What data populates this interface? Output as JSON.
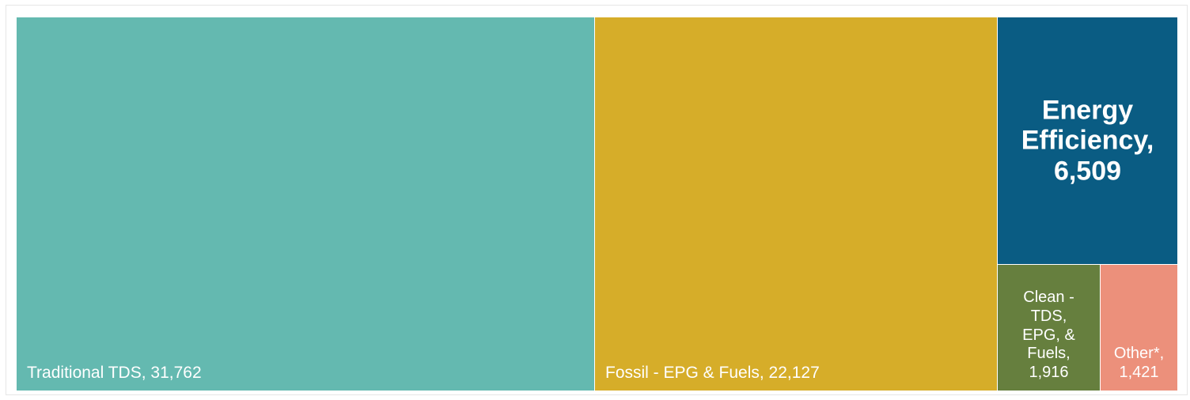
{
  "chart_data": {
    "type": "treemap",
    "items": [
      {
        "name": "Traditional TDS",
        "value": 31762,
        "label": "Traditional TDS, 31,762",
        "color": "#64b9b0"
      },
      {
        "name": "Fossil - EPG & Fuels",
        "value": 22127,
        "label": "Fossil - EPG & Fuels, 22,127",
        "color": "#d6ad29"
      },
      {
        "name": "Energy Efficiency",
        "value": 6509,
        "label_lines": [
          "Energy",
          "Efficiency,",
          "6,509"
        ],
        "color": "#0a5c83"
      },
      {
        "name": "Clean - TDS, EPG, & Fuels",
        "value": 1916,
        "label_lines": [
          "Clean -",
          "TDS,",
          "EPG, &",
          "Fuels,",
          "1,916"
        ],
        "color": "#667f3e"
      },
      {
        "name": "Other*",
        "value": 1421,
        "label_lines": [
          "Other*,",
          "1,421"
        ],
        "color": "#ec907b"
      }
    ]
  }
}
